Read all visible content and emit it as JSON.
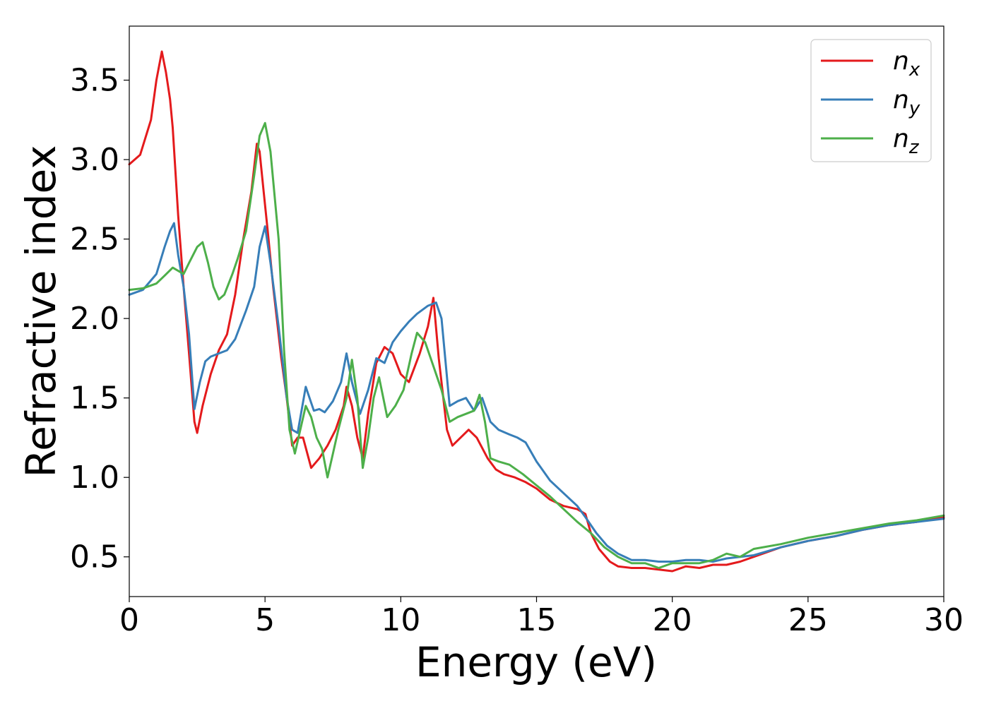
{
  "chart_data": {
    "type": "line",
    "title": "",
    "xlabel": "Energy (eV)",
    "ylabel": "Refractive index",
    "xlim": [
      0,
      30
    ],
    "ylim": [
      0.25,
      3.84
    ],
    "xticks": [
      0,
      5,
      10,
      15,
      20,
      25,
      30
    ],
    "xtick_labels": [
      "0",
      "5",
      "10",
      "15",
      "20",
      "25",
      "30"
    ],
    "yticks": [
      0.5,
      1.0,
      1.5,
      2.0,
      2.5,
      3.0,
      3.5
    ],
    "ytick_labels": [
      "0.5",
      "1.0",
      "1.5",
      "2.0",
      "2.5",
      "3.0",
      "3.5"
    ],
    "grid": false,
    "legend_position": "top-right",
    "series": [
      {
        "name": "n",
        "subscript": "x",
        "color": "#e41a1c",
        "x": [
          0,
          0.4,
          0.8,
          1.0,
          1.2,
          1.35,
          1.5,
          1.6,
          1.8,
          2.0,
          2.2,
          2.4,
          2.5,
          2.7,
          3.0,
          3.3,
          3.6,
          3.9,
          4.2,
          4.5,
          4.7,
          4.8,
          4.95,
          5.1,
          5.3,
          5.6,
          5.8,
          6.0,
          6.2,
          6.4,
          6.7,
          7.0,
          7.3,
          7.6,
          7.9,
          8.0,
          8.2,
          8.4,
          8.6,
          8.8,
          9.1,
          9.4,
          9.7,
          10.0,
          10.3,
          10.7,
          11.0,
          11.2,
          11.4,
          11.7,
          11.9,
          12.2,
          12.5,
          12.8,
          13.2,
          13.5,
          13.8,
          14.2,
          14.6,
          15.0,
          15.5,
          16.0,
          16.5,
          16.8,
          17.0,
          17.3,
          17.7,
          18.0,
          18.5,
          19.0,
          19.5,
          20.0,
          20.5,
          21.0,
          21.5,
          22.0,
          22.5,
          23.0,
          23.5,
          24.0,
          25.0,
          26.0,
          27.0,
          28.0,
          29.0,
          30.0
        ],
        "values": [
          2.97,
          3.03,
          3.25,
          3.5,
          3.68,
          3.55,
          3.38,
          3.2,
          2.65,
          2.2,
          1.78,
          1.35,
          1.28,
          1.45,
          1.65,
          1.8,
          1.9,
          2.15,
          2.5,
          2.8,
          3.1,
          3.05,
          2.8,
          2.55,
          2.2,
          1.75,
          1.5,
          1.2,
          1.25,
          1.25,
          1.06,
          1.12,
          1.2,
          1.3,
          1.45,
          1.57,
          1.45,
          1.25,
          1.12,
          1.4,
          1.72,
          1.82,
          1.78,
          1.65,
          1.6,
          1.78,
          1.95,
          2.13,
          1.75,
          1.3,
          1.2,
          1.25,
          1.3,
          1.25,
          1.12,
          1.05,
          1.02,
          1.0,
          0.97,
          0.93,
          0.86,
          0.82,
          0.8,
          0.77,
          0.65,
          0.55,
          0.47,
          0.44,
          0.43,
          0.43,
          0.42,
          0.41,
          0.44,
          0.43,
          0.45,
          0.45,
          0.47,
          0.5,
          0.53,
          0.56,
          0.6,
          0.63,
          0.67,
          0.7,
          0.72,
          0.75
        ]
      },
      {
        "name": "n",
        "subscript": "y",
        "color": "#377eb8",
        "x": [
          0,
          0.5,
          1.0,
          1.3,
          1.5,
          1.65,
          1.8,
          2.0,
          2.2,
          2.4,
          2.6,
          2.8,
          3.0,
          3.3,
          3.6,
          3.9,
          4.3,
          4.6,
          4.8,
          5.0,
          5.2,
          5.5,
          5.8,
          6.0,
          6.2,
          6.5,
          6.8,
          7.0,
          7.2,
          7.5,
          7.8,
          8.0,
          8.2,
          8.5,
          8.8,
          9.1,
          9.4,
          9.7,
          10.0,
          10.3,
          10.6,
          11.0,
          11.3,
          11.5,
          11.8,
          12.1,
          12.4,
          12.7,
          13.0,
          13.3,
          13.6,
          14.0,
          14.3,
          14.6,
          15.0,
          15.5,
          16.0,
          16.5,
          16.8,
          17.2,
          17.6,
          18.0,
          18.5,
          19.0,
          19.5,
          20.0,
          20.5,
          21.0,
          21.5,
          22.0,
          22.5,
          23.0,
          24.0,
          25.0,
          26.0,
          27.0,
          28.0,
          29.0,
          30.0
        ],
        "values": [
          2.15,
          2.18,
          2.28,
          2.45,
          2.55,
          2.6,
          2.4,
          2.2,
          1.9,
          1.43,
          1.6,
          1.73,
          1.76,
          1.78,
          1.8,
          1.87,
          2.05,
          2.2,
          2.45,
          2.58,
          2.35,
          1.95,
          1.5,
          1.3,
          1.28,
          1.57,
          1.42,
          1.43,
          1.41,
          1.48,
          1.6,
          1.78,
          1.6,
          1.4,
          1.55,
          1.75,
          1.72,
          1.85,
          1.92,
          1.98,
          2.03,
          2.08,
          2.1,
          2.0,
          1.45,
          1.48,
          1.5,
          1.42,
          1.5,
          1.35,
          1.3,
          1.27,
          1.25,
          1.22,
          1.1,
          0.98,
          0.9,
          0.82,
          0.75,
          0.65,
          0.57,
          0.52,
          0.48,
          0.48,
          0.47,
          0.47,
          0.48,
          0.48,
          0.47,
          0.49,
          0.5,
          0.51,
          0.56,
          0.6,
          0.63,
          0.67,
          0.7,
          0.72,
          0.74
        ]
      },
      {
        "name": "n",
        "subscript": "z",
        "color": "#4daf4a",
        "x": [
          0,
          0.5,
          1.0,
          1.3,
          1.6,
          1.8,
          2.0,
          2.2,
          2.5,
          2.7,
          2.9,
          3.1,
          3.3,
          3.5,
          3.8,
          4.0,
          4.3,
          4.6,
          4.8,
          5.0,
          5.2,
          5.5,
          5.7,
          5.9,
          6.1,
          6.3,
          6.5,
          6.7,
          6.9,
          7.1,
          7.3,
          7.5,
          7.7,
          8.0,
          8.2,
          8.4,
          8.6,
          8.8,
          9.0,
          9.2,
          9.5,
          9.8,
          10.1,
          10.4,
          10.6,
          10.9,
          11.2,
          11.5,
          11.8,
          12.1,
          12.4,
          12.7,
          12.9,
          13.1,
          13.3,
          13.6,
          14.0,
          14.5,
          15.0,
          15.5,
          16.0,
          16.5,
          17.0,
          17.5,
          18.0,
          18.5,
          19.0,
          19.5,
          20.0,
          20.5,
          21.0,
          21.5,
          22.0,
          22.5,
          23.0,
          24.0,
          25.0,
          26.0,
          27.0,
          28.0,
          29.0,
          30.0
        ],
        "values": [
          2.18,
          2.19,
          2.22,
          2.27,
          2.32,
          2.3,
          2.28,
          2.35,
          2.45,
          2.48,
          2.35,
          2.2,
          2.12,
          2.15,
          2.28,
          2.38,
          2.55,
          2.9,
          3.15,
          3.23,
          3.05,
          2.5,
          1.8,
          1.3,
          1.15,
          1.3,
          1.45,
          1.38,
          1.25,
          1.18,
          1.0,
          1.15,
          1.3,
          1.5,
          1.74,
          1.5,
          1.06,
          1.25,
          1.5,
          1.63,
          1.38,
          1.45,
          1.55,
          1.78,
          1.91,
          1.85,
          1.7,
          1.55,
          1.35,
          1.38,
          1.4,
          1.42,
          1.52,
          1.35,
          1.12,
          1.1,
          1.08,
          1.02,
          0.95,
          0.88,
          0.8,
          0.72,
          0.65,
          0.56,
          0.5,
          0.46,
          0.46,
          0.43,
          0.46,
          0.46,
          0.46,
          0.48,
          0.52,
          0.5,
          0.55,
          0.58,
          0.62,
          0.65,
          0.68,
          0.71,
          0.73,
          0.76
        ]
      }
    ]
  }
}
